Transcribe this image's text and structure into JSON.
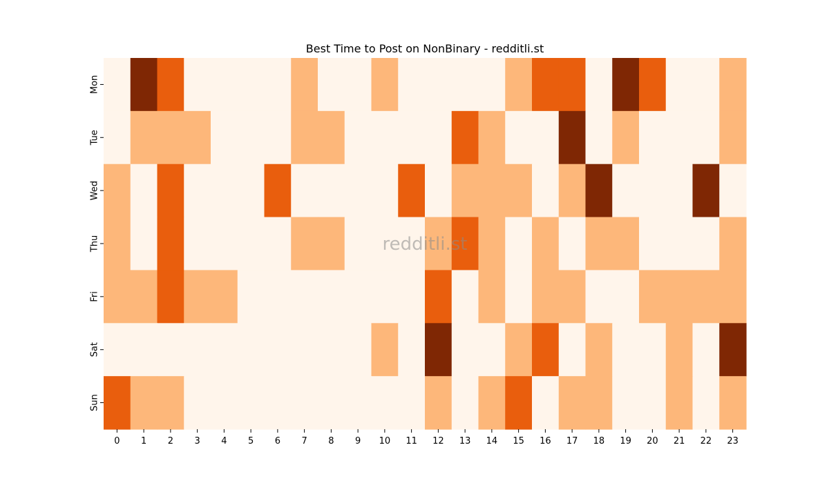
{
  "chart_data": {
    "type": "heatmap",
    "title": "Best Time to Post on NonBinary - redditli.st",
    "watermark": "redditli.st",
    "x_categories": [
      "0",
      "1",
      "2",
      "3",
      "4",
      "5",
      "6",
      "7",
      "8",
      "9",
      "10",
      "11",
      "12",
      "13",
      "14",
      "15",
      "16",
      "17",
      "18",
      "19",
      "20",
      "21",
      "22",
      "23"
    ],
    "y_categories": [
      "Mon",
      "Tue",
      "Wed",
      "Thu",
      "Fri",
      "Sat",
      "Sun"
    ],
    "xlabel": "",
    "ylabel": "",
    "value_range": [
      0,
      3
    ],
    "colormap": [
      "#fff5eb",
      "#fdb77a",
      "#e95e0d",
      "#7f2704"
    ],
    "colorbar": false,
    "grid": false,
    "values": [
      [
        0,
        3,
        2,
        0,
        0,
        0,
        0,
        1,
        0,
        0,
        1,
        0,
        0,
        0,
        0,
        1,
        2,
        2,
        0,
        3,
        2,
        0,
        0,
        1
      ],
      [
        0,
        1,
        1,
        1,
        0,
        0,
        0,
        1,
        1,
        0,
        0,
        0,
        0,
        2,
        1,
        0,
        0,
        3,
        0,
        1,
        0,
        0,
        0,
        1
      ],
      [
        1,
        0,
        2,
        0,
        0,
        0,
        2,
        0,
        0,
        0,
        0,
        2,
        0,
        1,
        1,
        1,
        0,
        1,
        3,
        0,
        0,
        0,
        3,
        0
      ],
      [
        1,
        0,
        2,
        0,
        0,
        0,
        0,
        1,
        1,
        0,
        0,
        0,
        1,
        2,
        1,
        0,
        1,
        0,
        1,
        1,
        0,
        0,
        0,
        1
      ],
      [
        1,
        1,
        2,
        1,
        1,
        0,
        0,
        0,
        0,
        0,
        0,
        0,
        2,
        0,
        1,
        0,
        1,
        1,
        0,
        0,
        1,
        1,
        1,
        1
      ],
      [
        0,
        0,
        0,
        0,
        0,
        0,
        0,
        0,
        0,
        0,
        1,
        0,
        3,
        0,
        0,
        1,
        2,
        0,
        1,
        0,
        0,
        1,
        0,
        3
      ],
      [
        2,
        1,
        1,
        0,
        0,
        0,
        0,
        0,
        0,
        0,
        0,
        0,
        1,
        0,
        1,
        2,
        0,
        1,
        1,
        0,
        0,
        1,
        0,
        1
      ]
    ]
  }
}
